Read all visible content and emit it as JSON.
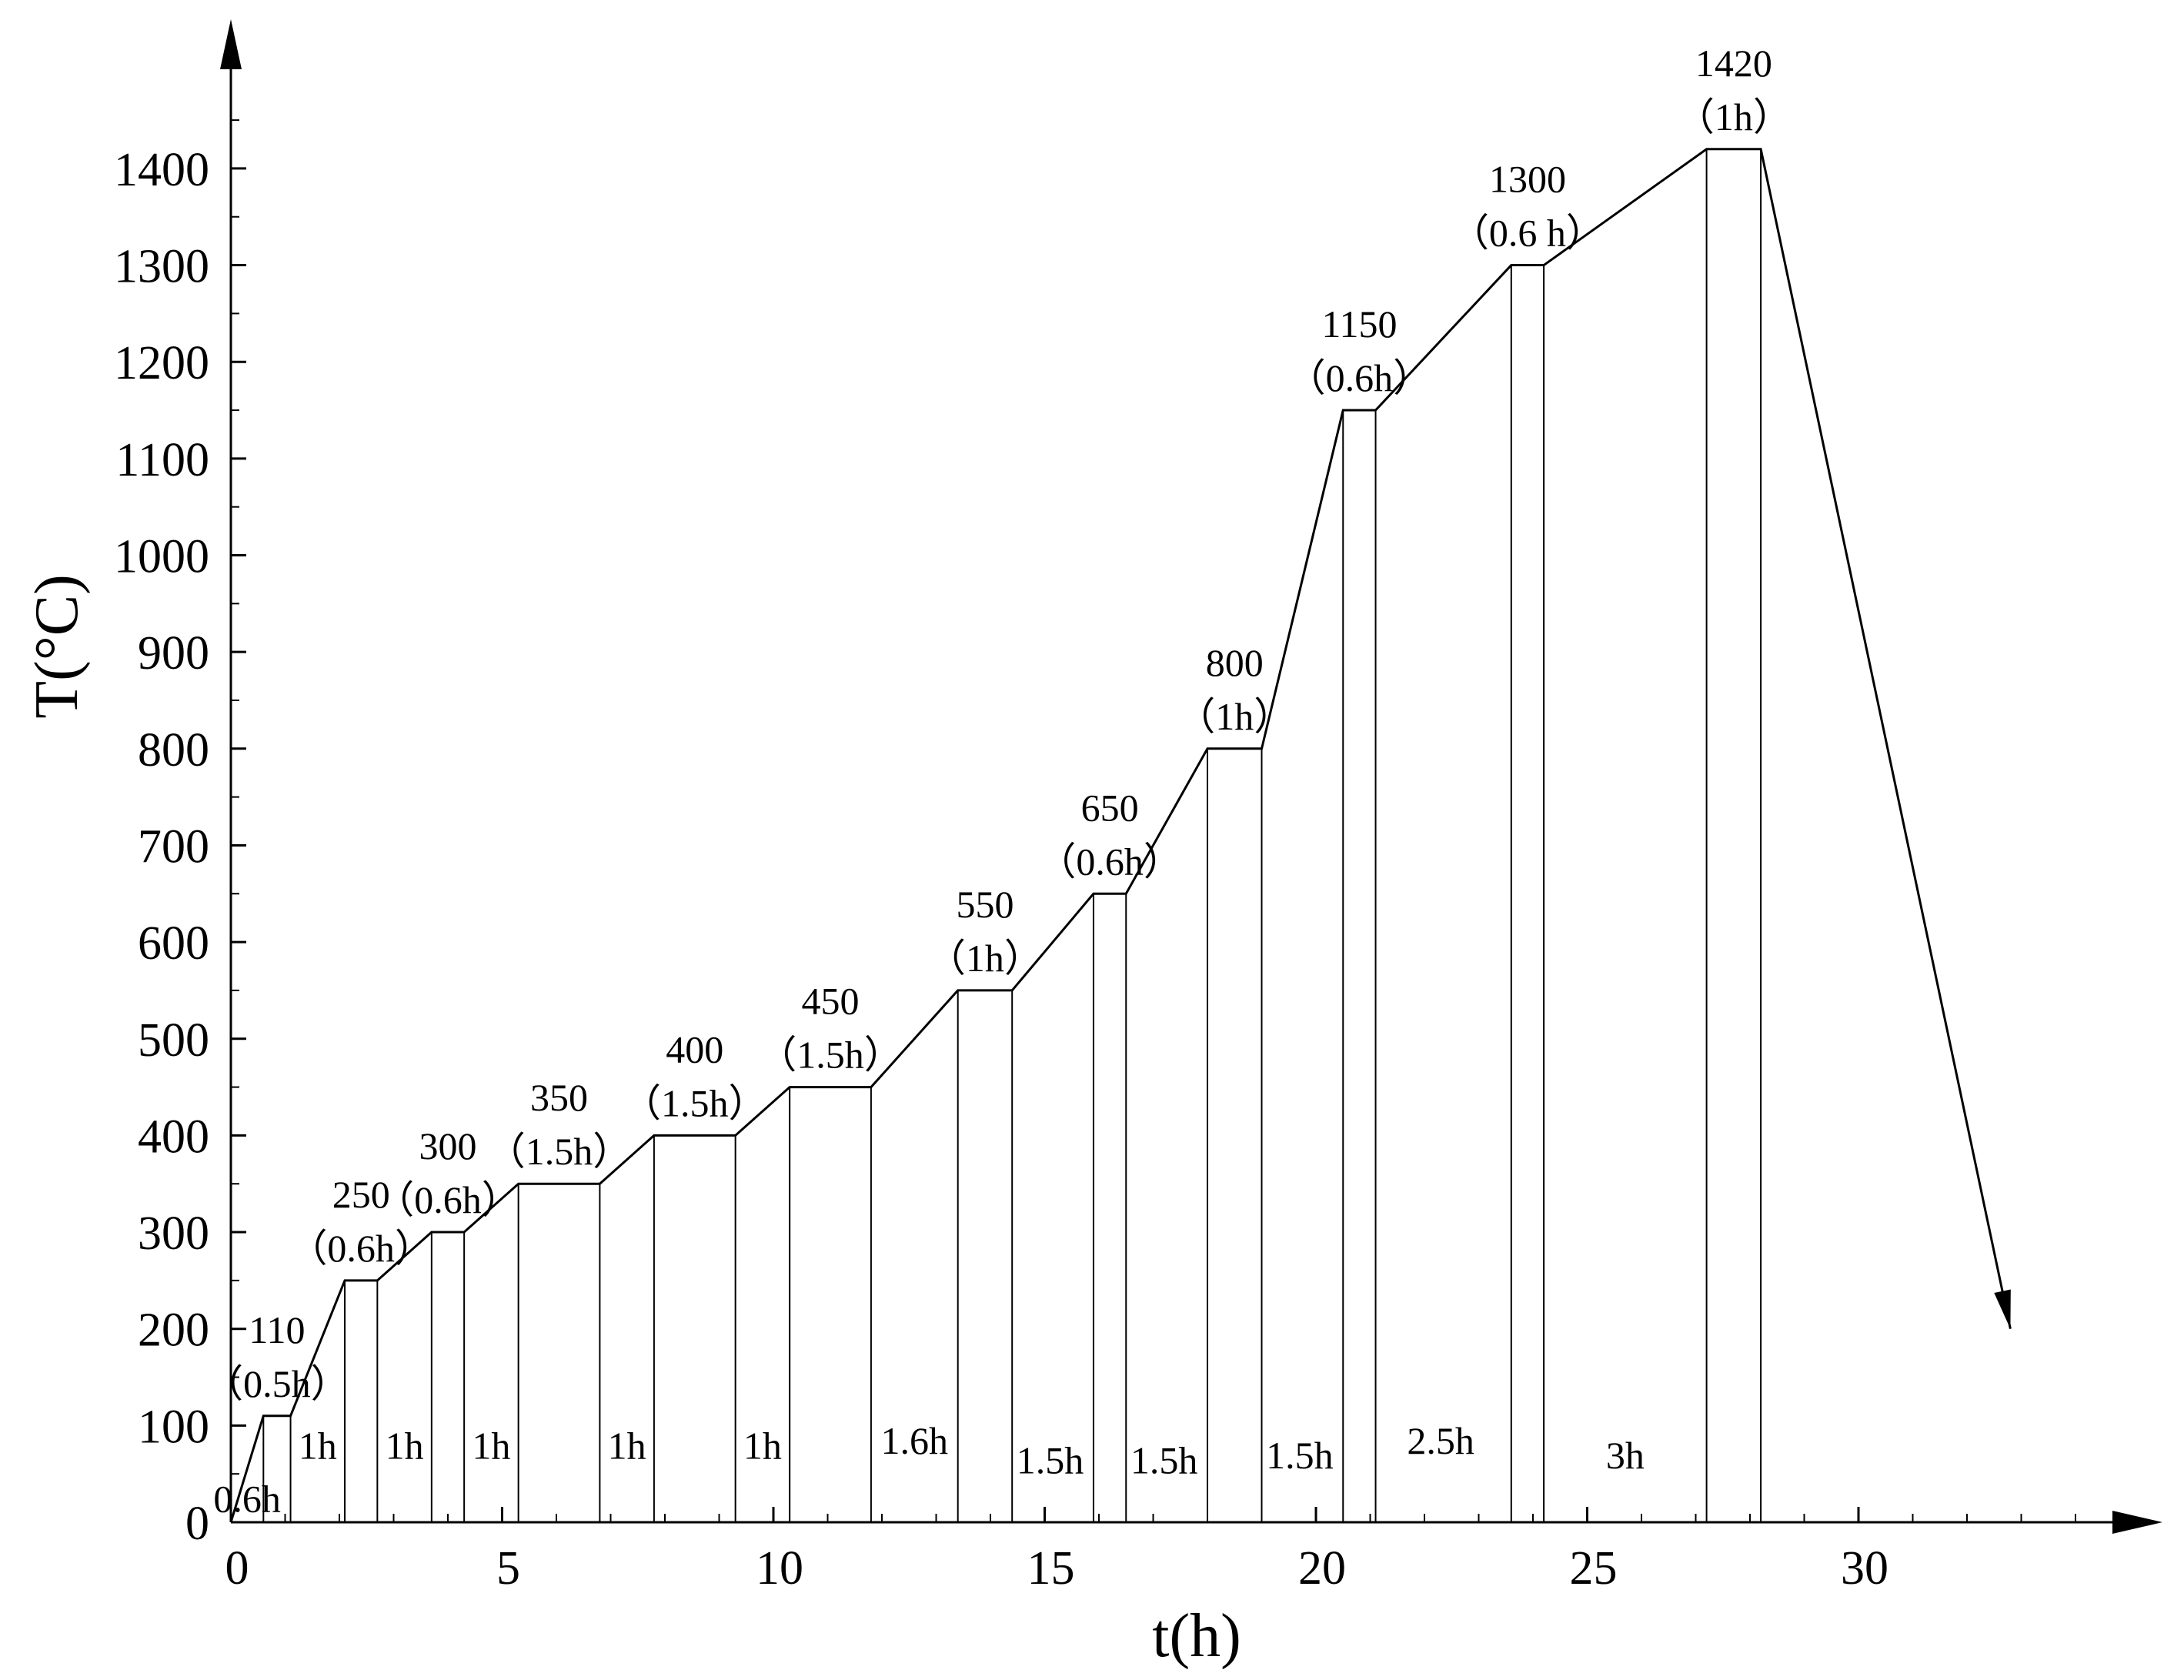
{
  "chart_data": {
    "type": "line",
    "xlabel": "t(h)",
    "ylabel": "T(°C)",
    "xlim": [
      0,
      35
    ],
    "ylim": [
      0,
      1500
    ],
    "x_ticks": [
      0,
      5,
      10,
      15,
      20,
      25,
      30
    ],
    "y_ticks": [
      0,
      100,
      200,
      300,
      400,
      500,
      600,
      700,
      800,
      900,
      1000,
      1100,
      1200,
      1300,
      1400
    ],
    "grid": false,
    "series": [
      {
        "x": [
          0,
          0.6,
          1.1,
          2.1,
          2.7,
          3.7,
          4.3,
          5.3,
          6.8,
          7.8,
          9.3,
          10.3,
          11.8,
          13.4,
          14.4,
          15.9,
          16.5,
          18.0,
          19.0,
          20.5,
          21.1,
          23.6,
          24.2,
          27.2,
          28.2,
          32.8
        ],
        "y": [
          0,
          110,
          110,
          250,
          250,
          300,
          300,
          350,
          350,
          400,
          400,
          450,
          450,
          550,
          550,
          650,
          650,
          800,
          800,
          1150,
          1150,
          1300,
          1300,
          1420,
          1420,
          200
        ]
      }
    ],
    "holds": [
      {
        "label": "110",
        "duration": "（0.5h）",
        "t_start": 0.6,
        "t_end": 1.1,
        "T": 110
      },
      {
        "label": "250",
        "duration": "（0.6h）",
        "t_start": 2.1,
        "t_end": 2.7,
        "T": 250
      },
      {
        "label": "300",
        "duration": "（0.6h）",
        "t_start": 3.7,
        "t_end": 4.3,
        "T": 300
      },
      {
        "label": "350",
        "duration": "（1.5h）",
        "t_start": 5.3,
        "t_end": 6.8,
        "T": 350
      },
      {
        "label": "400",
        "duration": "（1.5h）",
        "t_start": 7.8,
        "t_end": 9.3,
        "T": 400
      },
      {
        "label": "450",
        "duration": "（1.5h）",
        "t_start": 10.3,
        "t_end": 11.8,
        "T": 450
      },
      {
        "label": "550",
        "duration": "（1h）",
        "t_start": 13.4,
        "t_end": 14.4,
        "T": 550
      },
      {
        "label": "650",
        "duration": "（0.6h）",
        "t_start": 15.9,
        "t_end": 16.5,
        "T": 650
      },
      {
        "label": "800",
        "duration": "（1h）",
        "t_start": 18.0,
        "t_end": 19.0,
        "T": 800
      },
      {
        "label": "1150",
        "duration": "（0.6h）",
        "t_start": 20.5,
        "t_end": 21.1,
        "T": 1150
      },
      {
        "label": "1300",
        "duration": "（0.6 h）",
        "t_start": 23.6,
        "t_end": 24.2,
        "T": 1300
      },
      {
        "label": "1420",
        "duration": "（1h）",
        "t_start": 27.2,
        "t_end": 28.2,
        "T": 1420
      }
    ],
    "ramps": [
      {
        "label": "0.6h",
        "t": 0.3,
        "T": 25
      },
      {
        "label": "1h",
        "t": 1.6,
        "T": 80
      },
      {
        "label": "1h",
        "t": 3.2,
        "T": 80
      },
      {
        "label": "1h",
        "t": 4.8,
        "T": 80
      },
      {
        "label": "1h",
        "t": 7.3,
        "T": 80
      },
      {
        "label": "1h",
        "t": 9.8,
        "T": 80
      },
      {
        "label": "1.6h",
        "t": 12.6,
        "T": 85
      },
      {
        "label": "1.5h",
        "t": 15.1,
        "T": 65
      },
      {
        "label": "1.5h",
        "t": 17.2,
        "T": 65
      },
      {
        "label": "1.5h",
        "t": 19.7,
        "T": 70
      },
      {
        "label": "2.5h",
        "t": 22.3,
        "T": 85
      },
      {
        "label": "3h",
        "t": 25.7,
        "T": 70
      }
    ]
  }
}
